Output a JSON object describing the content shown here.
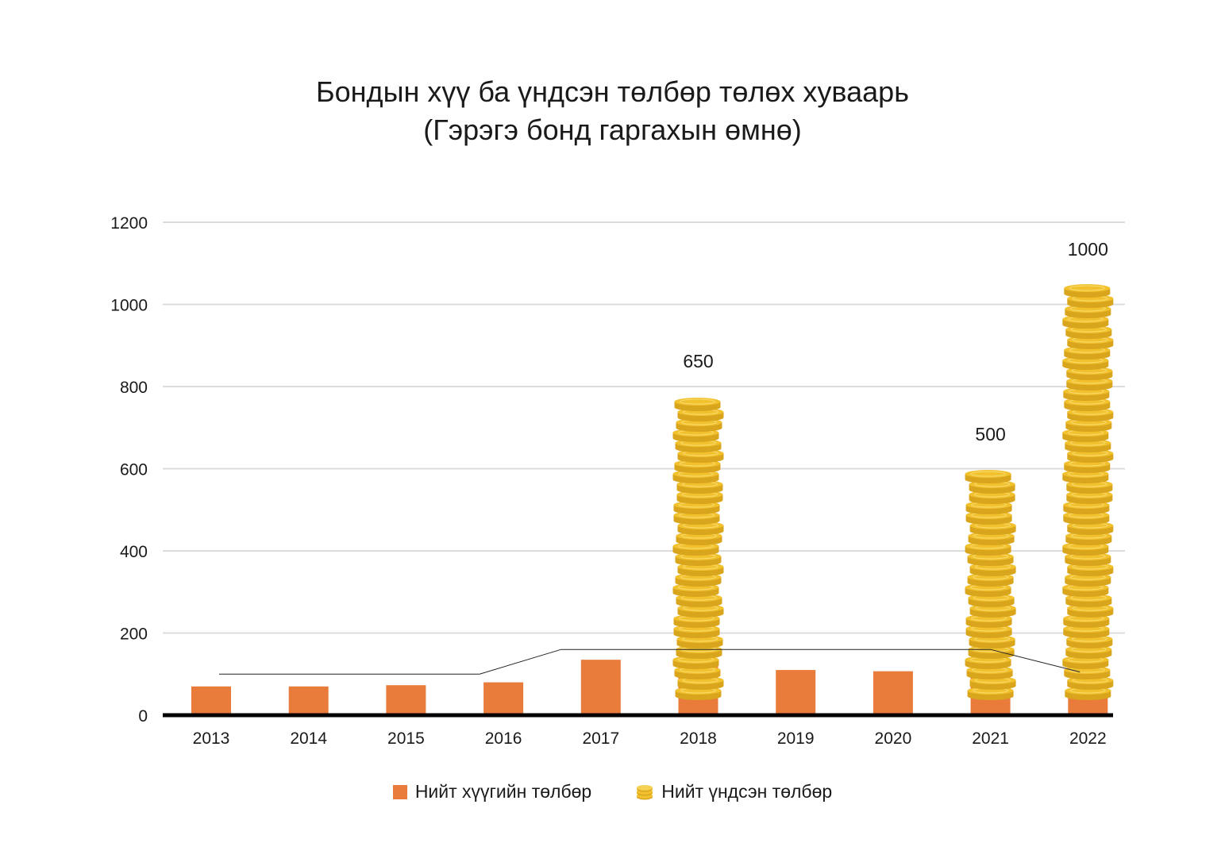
{
  "title_line1": "Бондын хүү ба үндсэн төлбөр төлөх хуваарь",
  "title_line2": "(Гэрэгэ бонд гаргахын өмнө)",
  "colors": {
    "interest": "#e97c3b",
    "coin": "#f2c12e",
    "coin_edge": "#d9a51c",
    "grid": "#dcdcdc",
    "axis": "#000000"
  },
  "chart_data": {
    "type": "bar",
    "categories": [
      "2013",
      "2014",
      "2015",
      "2016",
      "2017",
      "2018",
      "2019",
      "2020",
      "2021",
      "2022"
    ],
    "series": [
      {
        "name": "Нийт хүүгийн төлбөр",
        "values": [
          70,
          70,
          73,
          80,
          135,
          135,
          110,
          107,
          107,
          57
        ]
      },
      {
        "name": "Нийт үндсэн төлбөр",
        "values": [
          0,
          0,
          0,
          0,
          0,
          650,
          0,
          0,
          500,
          1000
        ]
      }
    ],
    "data_labels": [
      "",
      "",
      "",
      "",
      "",
      "650",
      "",
      "",
      "500",
      "1000"
    ],
    "yticks": [
      "0",
      "200",
      "400",
      "600",
      "800",
      "1000",
      "1200"
    ],
    "ylim": [
      0,
      1200
    ],
    "grid": true,
    "legend": "bottom",
    "icon": "coin-stack-icon"
  },
  "legend": {
    "interest_label": "Нийт хүүгийн төлбөр",
    "principal_label": "Нийт үндсэн төлбөр"
  }
}
